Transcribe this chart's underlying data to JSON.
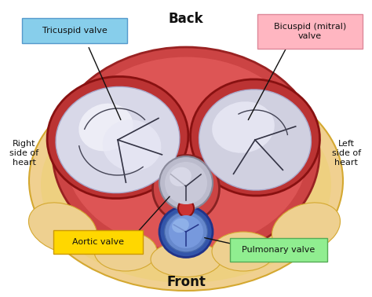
{
  "title_top": "Back",
  "title_bottom": "Front",
  "labels": {
    "tricuspid": "Tricuspid valve",
    "bicuspid": "Bicuspid (mitral)\nvalve",
    "right_heart": "Right\nside of\nheart",
    "left_heart": "Left\nside of\nheart",
    "aortic": "Aortic valve",
    "pulmonary": "Pulmonary valve"
  },
  "label_boxes": {
    "tricuspid_bg": "#87CEEB",
    "bicuspid_bg": "#FFB6C1",
    "aortic_bg": "#FFD700",
    "pulmonary_bg": "#90EE90"
  },
  "colors": {
    "background": "#FFFFFF",
    "outer_heart": "#E8C0A0",
    "heart_muscle": "#CC4444",
    "heart_muscle_dark": "#B03030",
    "valve_white": "#E8E8F0",
    "valve_grey": "#C0C0D0",
    "valve_dark": "#888899",
    "aortic_ring": "#4466AA",
    "aortic_fill": "#6688CC",
    "fat_tissue": "#F5DEB3",
    "line_color": "#222222"
  },
  "figsize": [
    4.74,
    3.78
  ],
  "dpi": 100
}
